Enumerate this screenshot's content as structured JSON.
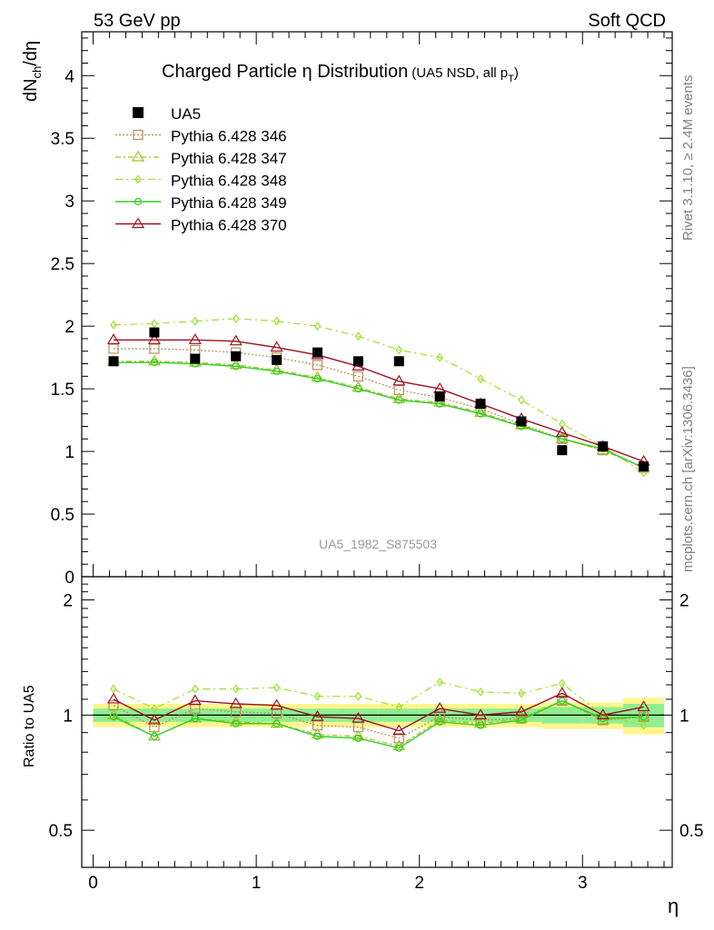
{
  "header": {
    "left": "53 GeV pp",
    "right": "Soft QCD"
  },
  "side": {
    "rivet": "Rivet 3.1.10, ≥ 2.4M events",
    "mcplots": "mcplots.cern.ch [arXiv:1306.3436]"
  },
  "chart_data": [
    {
      "type": "scatter",
      "title": "Charged Particle η Distribution",
      "subtitle": "(UA5 NSD, all p",
      "subtitle_sub": "T",
      "subtitle_end": ")",
      "ylabel_main": "dN",
      "ylabel_sub1": "ch",
      "ylabel_mid": "/dη",
      "watermark": "UA5_1982_S875503",
      "ylim": [
        0,
        4.35
      ],
      "xlim": [
        -0.07,
        3.55
      ],
      "yticks": [
        "0",
        "0.5",
        "1",
        "1.5",
        "2",
        "2.5",
        "3",
        "3.5",
        "4"
      ],
      "ytick_values": [
        0,
        0.5,
        1,
        1.5,
        2,
        2.5,
        3,
        3.5,
        4
      ],
      "legend_position": "top-left",
      "x": [
        0.125,
        0.375,
        0.625,
        0.875,
        1.125,
        1.375,
        1.625,
        1.875,
        2.125,
        2.375,
        2.625,
        2.875,
        3.125,
        3.375
      ],
      "data": {
        "name": "UA5",
        "values": [
          1.72,
          1.95,
          1.74,
          1.76,
          1.73,
          1.79,
          1.72,
          1.72,
          1.44,
          1.38,
          1.24,
          1.01,
          1.04,
          0.88
        ]
      },
      "series": [
        {
          "name": "Pythia 6.428 346",
          "color": "#b58c5a",
          "marker": "square",
          "values": [
            1.82,
            1.82,
            1.81,
            1.79,
            1.75,
            1.69,
            1.6,
            1.49,
            1.43,
            1.34,
            1.22,
            1.1,
            1.01,
            0.87
          ]
        },
        {
          "name": "Pythia 6.428 347",
          "color": "#a3bf1e",
          "marker": "triangle",
          "values": [
            1.72,
            1.72,
            1.71,
            1.69,
            1.65,
            1.59,
            1.51,
            1.42,
            1.39,
            1.31,
            1.21,
            1.1,
            1.01,
            0.87
          ]
        },
        {
          "name": "Pythia 6.428 348",
          "color": "#9ee030",
          "marker": "diamond",
          "values": [
            2.01,
            2.02,
            2.04,
            2.06,
            2.04,
            2.0,
            1.92,
            1.81,
            1.75,
            1.58,
            1.41,
            1.22,
            1.04,
            0.83
          ]
        },
        {
          "name": "Pythia 6.428 349",
          "color": "#30d020",
          "marker": "circle",
          "values": [
            1.71,
            1.71,
            1.7,
            1.68,
            1.64,
            1.58,
            1.5,
            1.41,
            1.38,
            1.3,
            1.2,
            1.1,
            1.02,
            0.87
          ]
        },
        {
          "name": "Pythia 6.428 370",
          "color": "#a01020",
          "marker": "triangle",
          "values": [
            1.89,
            1.89,
            1.89,
            1.88,
            1.83,
            1.77,
            1.68,
            1.56,
            1.5,
            1.38,
            1.26,
            1.15,
            1.04,
            0.92
          ]
        }
      ]
    },
    {
      "type": "line",
      "ylabel": "Ratio to UA5",
      "xlabel": "η",
      "ylim": [
        0.4,
        2.3
      ],
      "log_y": true,
      "yticks": [
        "0.5",
        "1",
        "2"
      ],
      "ytick_values": [
        0.5,
        1,
        2
      ],
      "xticks": [
        "0",
        "1",
        "2",
        "3"
      ],
      "xtick_values": [
        0,
        1,
        2,
        3
      ],
      "band_inner": [
        0.04,
        0.04,
        0.04,
        0.04,
        0.04,
        0.04,
        0.04,
        0.04,
        0.04,
        0.04,
        0.04,
        0.05,
        0.05,
        0.07
      ],
      "band_outer": [
        0.07,
        0.07,
        0.07,
        0.07,
        0.07,
        0.07,
        0.07,
        0.07,
        0.07,
        0.07,
        0.07,
        0.08,
        0.08,
        0.11
      ],
      "series": [
        {
          "name": "Pythia 6.428 346",
          "values": [
            1.06,
            0.93,
            1.04,
            1.02,
            1.01,
            0.94,
            0.93,
            0.87,
            0.99,
            0.97,
            0.98,
            1.09,
            0.97,
            0.99
          ]
        },
        {
          "name": "Pythia 6.428 347",
          "values": [
            1.0,
            0.88,
            0.98,
            0.96,
            0.95,
            0.89,
            0.88,
            0.83,
            0.97,
            0.95,
            0.98,
            1.09,
            0.97,
            0.99
          ]
        },
        {
          "name": "Pythia 6.428 348",
          "values": [
            1.17,
            1.04,
            1.17,
            1.17,
            1.18,
            1.12,
            1.12,
            1.05,
            1.22,
            1.15,
            1.14,
            1.21,
            1.0,
            0.94
          ]
        },
        {
          "name": "Pythia 6.428 349",
          "values": [
            0.99,
            0.88,
            0.98,
            0.95,
            0.95,
            0.88,
            0.87,
            0.82,
            0.96,
            0.94,
            0.97,
            1.09,
            0.98,
            0.99
          ]
        },
        {
          "name": "Pythia 6.428 370",
          "values": [
            1.1,
            0.97,
            1.09,
            1.07,
            1.06,
            0.99,
            0.98,
            0.91,
            1.04,
            1.0,
            1.02,
            1.14,
            1.0,
            1.05
          ]
        }
      ]
    }
  ]
}
